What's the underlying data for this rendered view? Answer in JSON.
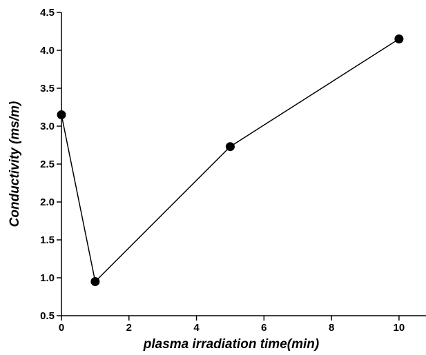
{
  "chart_data": {
    "type": "line",
    "title": "",
    "xlabel": "plasma irradiation time(min)",
    "ylabel": "Conductivity (ms/m)",
    "xlim": [
      0,
      10.8
    ],
    "ylim": [
      0.5,
      4.5
    ],
    "xticks": [
      0,
      2,
      4,
      6,
      8,
      10
    ],
    "xtick_labels": [
      "0",
      "2",
      "4",
      "6",
      "8",
      "10"
    ],
    "yticks": [
      0.5,
      1.0,
      1.5,
      2.0,
      2.5,
      3.0,
      3.5,
      4.0,
      4.5
    ],
    "ytick_labels": [
      "0.5",
      "1.0",
      "1.5",
      "2.0",
      "2.5",
      "3.0",
      "3.5",
      "4.0",
      "4.5"
    ],
    "grid": false,
    "series": [
      {
        "x": [
          0,
          1,
          5,
          10
        ],
        "y": [
          3.15,
          0.95,
          2.73,
          4.15
        ],
        "color": "#000000",
        "marker": "filled-circle"
      }
    ]
  }
}
